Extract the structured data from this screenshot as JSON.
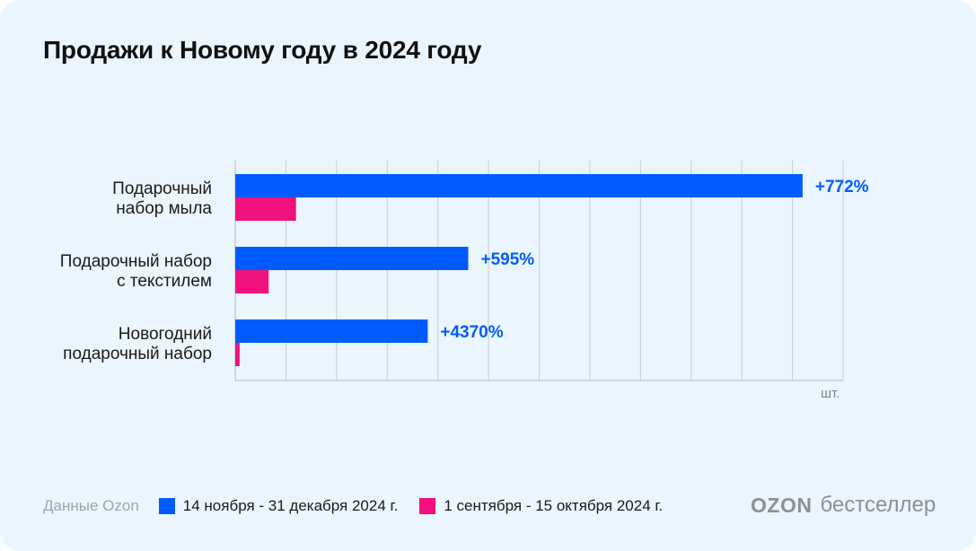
{
  "title": "Продажи к Новому году в 2024 году",
  "chart_data": {
    "type": "bar",
    "orientation": "horizontal",
    "categories": [
      [
        "Подарочный",
        "набор мыла"
      ],
      [
        "Подарочный набор",
        "с текстилем"
      ],
      [
        "Новогодний",
        "подарочный набор"
      ]
    ],
    "series": [
      {
        "name": "14 ноября - 31 декабря 2024 г.",
        "color": "#005bff",
        "values": [
          56,
          23,
          19
        ]
      },
      {
        "name": "1 сентября - 15 октября 2024 г.",
        "color": "#f1117e",
        "values": [
          6,
          3.3,
          0.43
        ]
      }
    ],
    "data_labels": [
      "+772%",
      "+595%",
      "+4370%"
    ],
    "xlabel": "шт.",
    "xlim": [
      0,
      60
    ],
    "grid": true,
    "x_tick_labels_shown": false,
    "legend_position": "bottom"
  },
  "footer": {
    "source": "Данные Ozon",
    "brand_logo": "OZON",
    "brand_text": "бестселлер"
  }
}
